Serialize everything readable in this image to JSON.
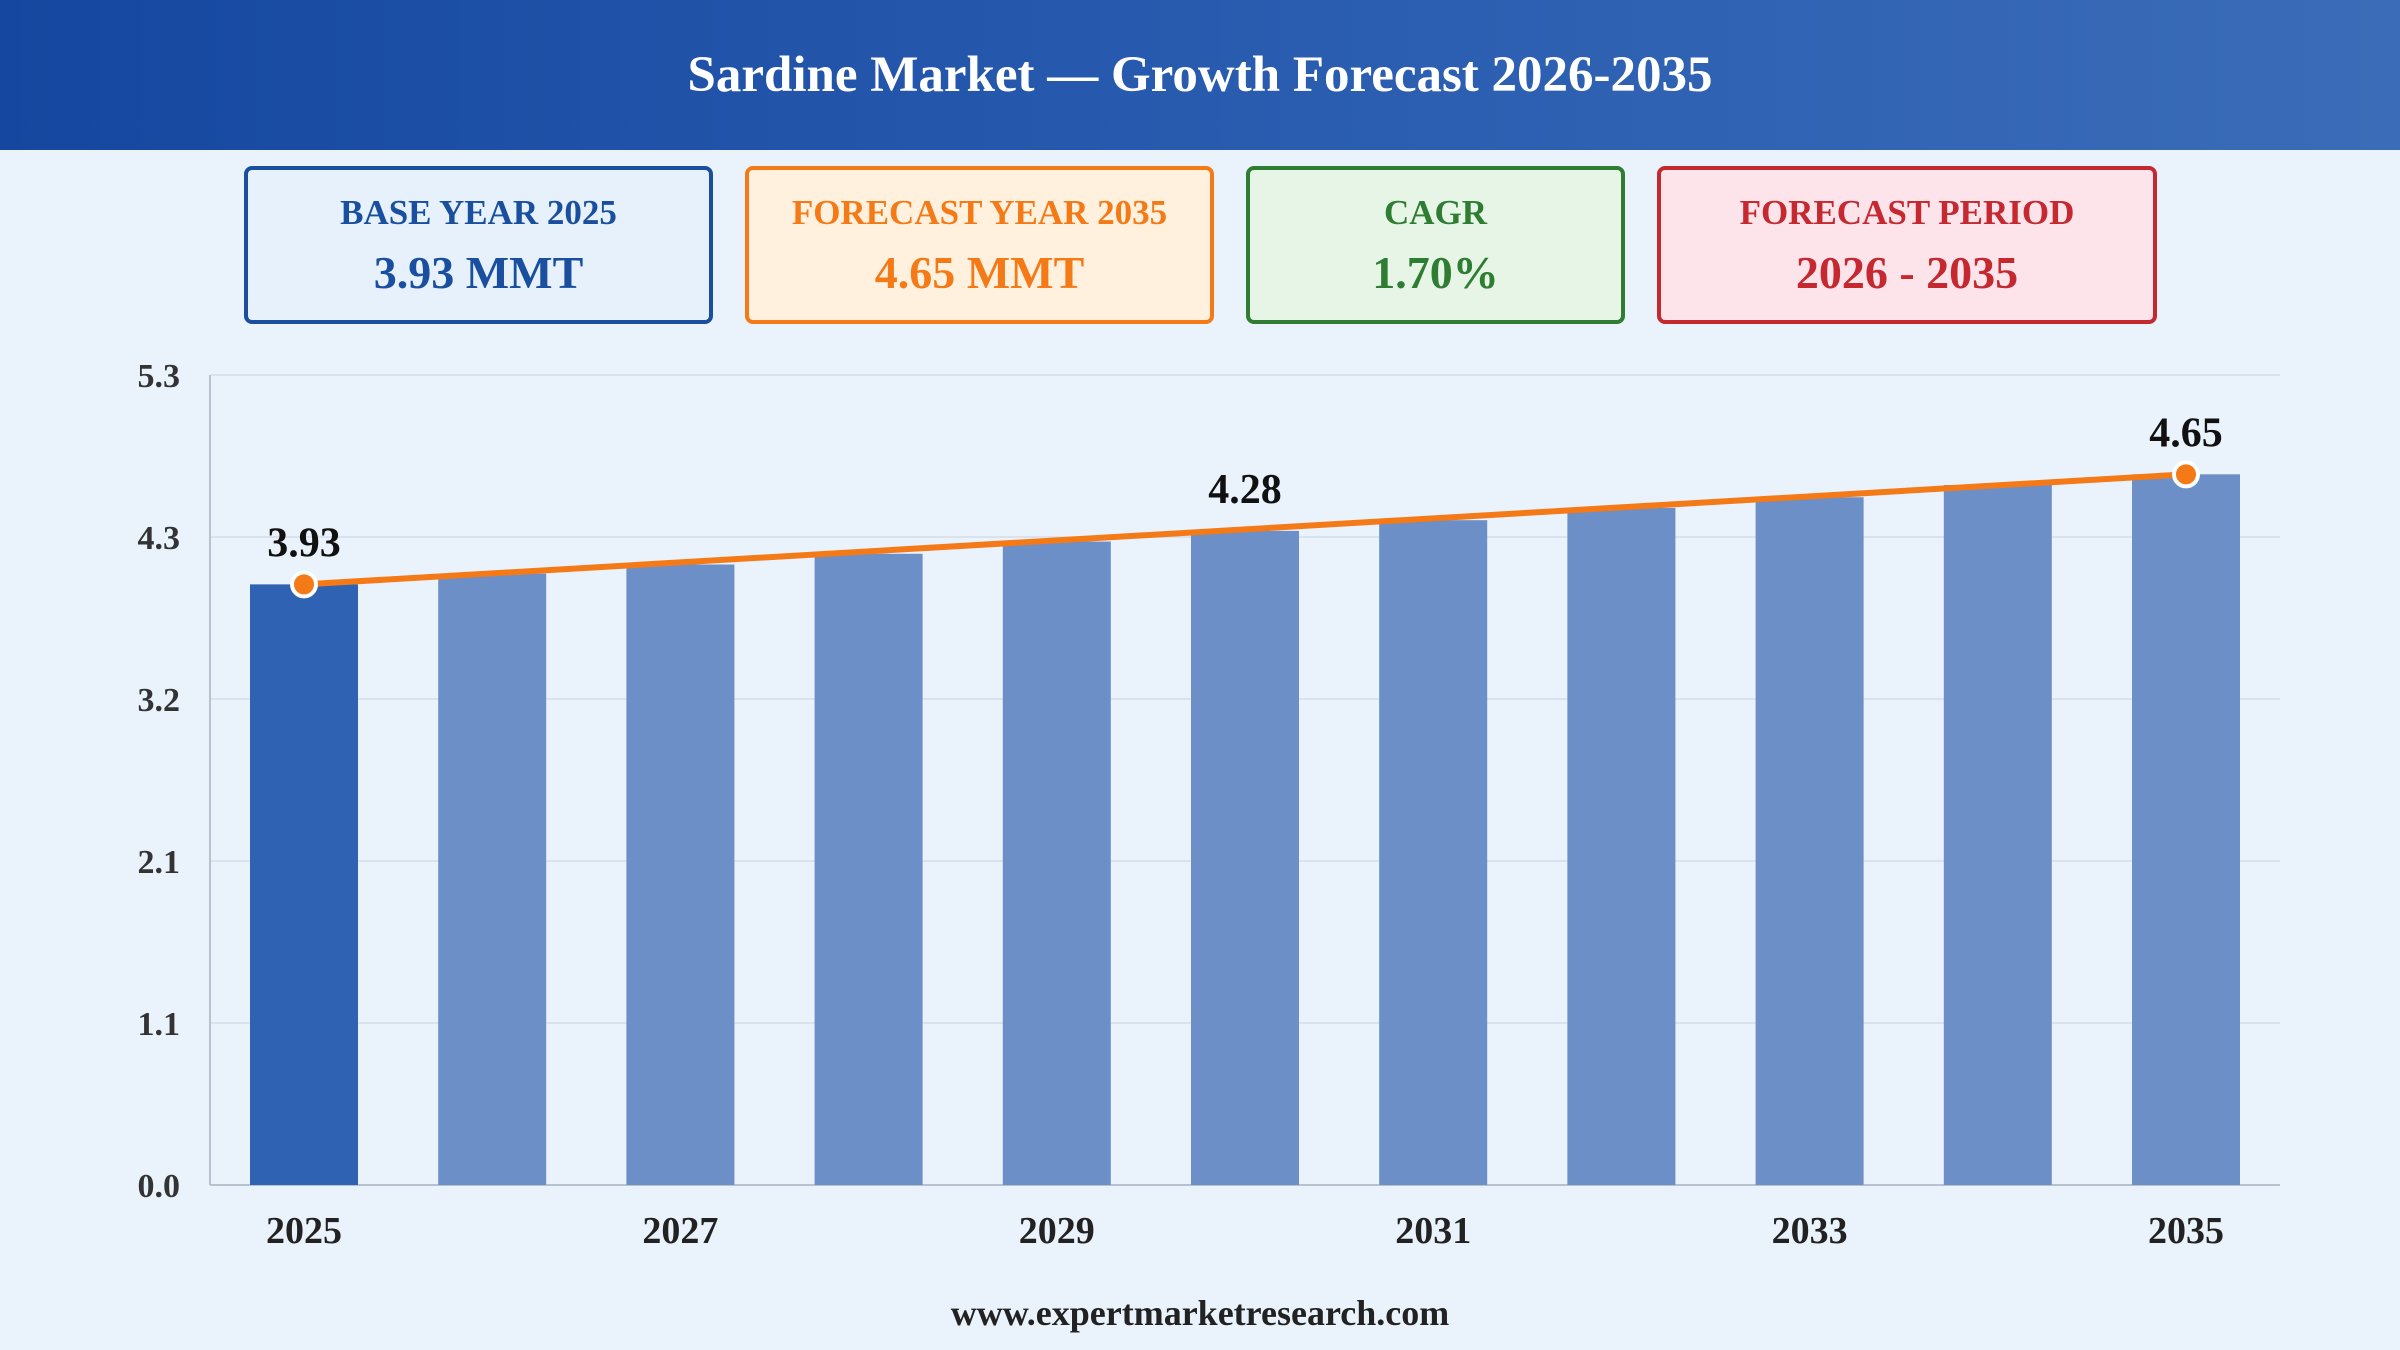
{
  "header": {
    "title": "Sardine Market — Growth Forecast 2026-2035"
  },
  "cards": {
    "base": {
      "label": "BASE YEAR 2025",
      "value": "3.93 MMT"
    },
    "forecast": {
      "label": "FORECAST YEAR 2035",
      "value": "4.65 MMT"
    },
    "cagr": {
      "label": "CAGR",
      "value": "1.70%"
    },
    "period": {
      "label": "FORECAST PERIOD",
      "value": "2026 - 2035"
    }
  },
  "footer": {
    "website": "www.expertmarketresearch.com"
  },
  "colors": {
    "base_bar": "#2f62b3",
    "forecast_bar": "#6b8fc6",
    "trend_line": "#f47a17",
    "accent_blue": "#1a4f9f",
    "accent_orange": "#f47a17",
    "accent_green": "#2e7d32",
    "accent_red": "#c62830"
  },
  "chart_data": {
    "type": "bar",
    "title": "",
    "xlabel": "",
    "ylabel": "",
    "categories": [
      "2025",
      "2026",
      "2027",
      "2028",
      "2029",
      "2030",
      "2031",
      "2032",
      "2033",
      "2034",
      "2035"
    ],
    "x_tick_labels": [
      "2025",
      "",
      "2027",
      "",
      "2029",
      "",
      "2031",
      "",
      "2033",
      "",
      "2035"
    ],
    "series": [
      {
        "values": [
          3.93,
          4.0,
          4.06,
          4.13,
          4.21,
          4.28,
          4.35,
          4.43,
          4.5,
          4.58,
          4.65
        ]
      }
    ],
    "trend_line": true,
    "data_labels": [
      {
        "index": 0,
        "text": "3.93"
      },
      {
        "index": 5,
        "text": "4.28"
      },
      {
        "index": 10,
        "text": "4.65"
      }
    ],
    "marker_indices": [
      0,
      10
    ],
    "yticks": [
      "0.0",
      "1.1",
      "2.1",
      "3.2",
      "4.3",
      "5.3"
    ],
    "ylim": [
      0,
      5.3
    ],
    "grid": true,
    "legend": "none"
  }
}
